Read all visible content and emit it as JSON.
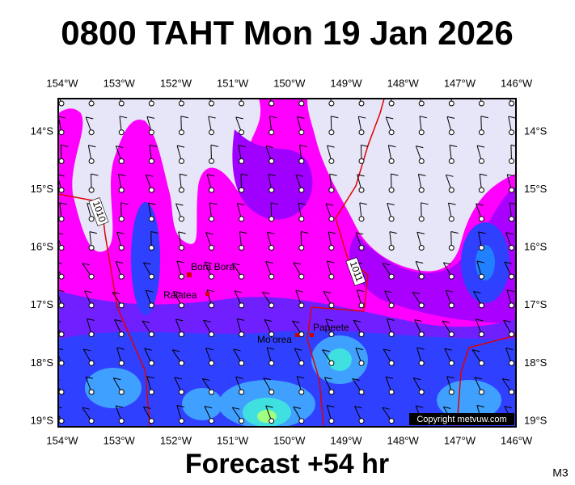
{
  "header": {
    "title": "0800 TAHT Mon 19 Jan 2026"
  },
  "map": {
    "longitudes": [
      "154°W",
      "153°W",
      "152°W",
      "151°W",
      "150°W",
      "149°W",
      "148°W",
      "147°W",
      "146°W"
    ],
    "latitudes": [
      "14°S",
      "15°S",
      "16°S",
      "17°S",
      "18°S",
      "19°S"
    ],
    "places": [
      "Bora Bora",
      "Raiatea",
      "Mo'orea",
      "Papeete"
    ],
    "isobar_labels": [
      "1010",
      "1011"
    ],
    "copyright": "Copyright metvuw.com"
  },
  "footer": {
    "forecast": "Forecast +54 hr",
    "code": "M3"
  }
}
